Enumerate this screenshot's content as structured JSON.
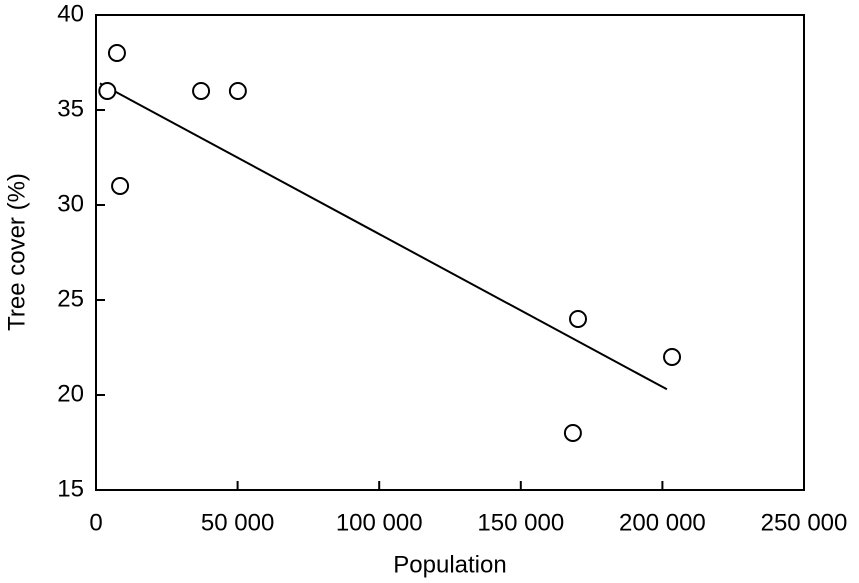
{
  "chart_data": {
    "type": "scatter",
    "x_label": "Population",
    "y_label": "Tree cover (%)",
    "x": [
      4000,
      7400,
      8500,
      37100,
      50100,
      170200,
      168400,
      203400
    ],
    "values": [
      36,
      38,
      31,
      36,
      36,
      24,
      18,
      22
    ],
    "color": "#000000",
    "trend": {
      "x": [
        1400,
        201600
      ],
      "y": [
        36.4,
        20.3
      ]
    },
    "xlim": [
      0,
      250000
    ],
    "xticks": [
      0,
      {
        "value": 50000,
        "label": "50 000"
      },
      {
        "value": 100000,
        "label": "100 000"
      },
      {
        "value": 150000,
        "label": "150 000"
      },
      {
        "value": 200000,
        "label": "200 000"
      },
      {
        "value": 250000,
        "label": "250 000"
      }
    ],
    "ylim": [
      15,
      40
    ],
    "yticks": [
      15,
      20,
      25,
      30,
      35,
      40
    ],
    "grid": false
  }
}
